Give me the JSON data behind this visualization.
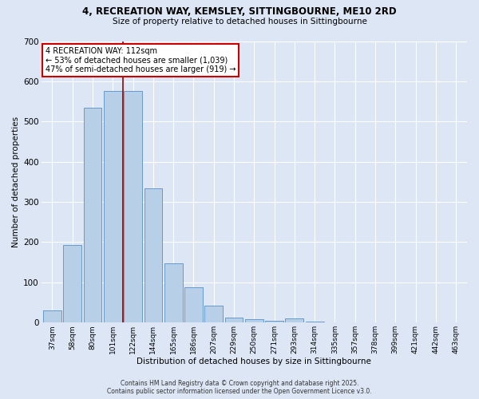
{
  "title_line1": "4, RECREATION WAY, KEMSLEY, SITTINGBOURNE, ME10 2RD",
  "title_line2": "Size of property relative to detached houses in Sittingbourne",
  "xlabel": "Distribution of detached houses by size in Sittingbourne",
  "ylabel": "Number of detached properties",
  "categories": [
    "37sqm",
    "58sqm",
    "80sqm",
    "101sqm",
    "122sqm",
    "144sqm",
    "165sqm",
    "186sqm",
    "207sqm",
    "229sqm",
    "250sqm",
    "271sqm",
    "293sqm",
    "314sqm",
    "335sqm",
    "357sqm",
    "378sqm",
    "399sqm",
    "421sqm",
    "442sqm",
    "463sqm"
  ],
  "values": [
    30,
    193,
    535,
    575,
    575,
    333,
    148,
    87,
    42,
    12,
    8,
    5,
    10,
    3,
    0,
    0,
    0,
    0,
    0,
    0,
    0
  ],
  "bar_color": "#b8cfe8",
  "bar_edge_color": "#6699cc",
  "vline_color": "#990000",
  "vline_label": "4 RECREATION WAY: 112sqm",
  "annotation_line2": "← 53% of detached houses are smaller (1,039)",
  "annotation_line3": "47% of semi-detached houses are larger (919) →",
  "box_facecolor": "#ffffff",
  "box_edgecolor": "#cc0000",
  "ylim": [
    0,
    700
  ],
  "yticks": [
    0,
    100,
    200,
    300,
    400,
    500,
    600,
    700
  ],
  "bg_color": "#dce6f5",
  "plot_bg_color": "#dce6f5",
  "footer_line1": "Contains HM Land Registry data © Crown copyright and database right 2025.",
  "footer_line2": "Contains public sector information licensed under the Open Government Licence v3.0.",
  "grid_color": "#ffffff"
}
